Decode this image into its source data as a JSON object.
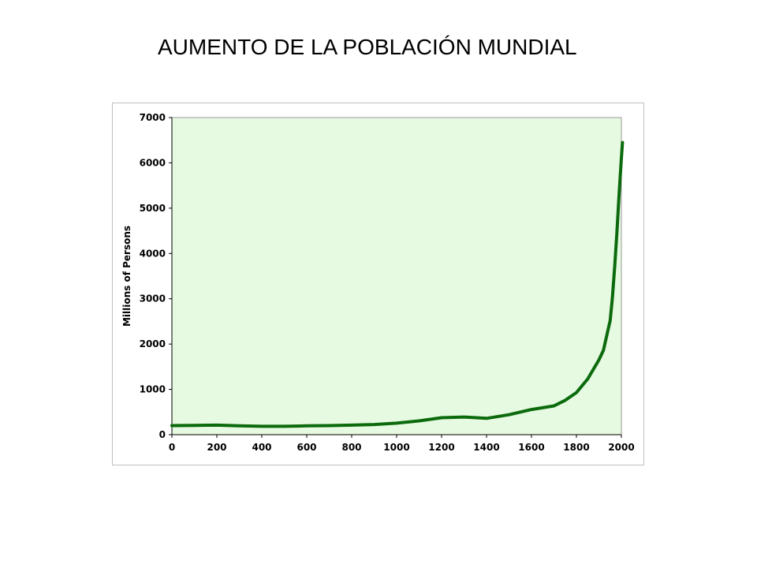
{
  "slide": {
    "title": "AUMENTO DE LA POBLACIÓN MUNDIAL"
  },
  "colors": {
    "plot_background": "#e6f9e1",
    "line": "#0b6a0b",
    "axis": "#000000",
    "frame_border": "#bfbfbf"
  },
  "chart_data": {
    "type": "line",
    "title": "",
    "xlabel": "",
    "ylabel": "Millions of Persons",
    "xlim": [
      0,
      2000
    ],
    "ylim": [
      0,
      7000
    ],
    "x_ticks": [
      0,
      200,
      400,
      600,
      800,
      1000,
      1200,
      1400,
      1600,
      1800,
      2000
    ],
    "y_ticks": [
      0,
      1000,
      2000,
      3000,
      4000,
      5000,
      6000,
      7000
    ],
    "grid": false,
    "legend": "none",
    "series": [
      {
        "x": [
          0,
          100,
          200,
          300,
          400,
          500,
          600,
          700,
          800,
          900,
          1000,
          1100,
          1200,
          1300,
          1400,
          1500,
          1600,
          1700,
          1750,
          1800,
          1850,
          1900,
          1920,
          1940,
          1950,
          1960,
          1970,
          1980,
          1990,
          2000,
          2005
        ],
        "y": [
          200,
          205,
          210,
          195,
          185,
          185,
          195,
          200,
          210,
          225,
          255,
          305,
          375,
          390,
          360,
          440,
          555,
          635,
          760,
          930,
          1230,
          1650,
          1860,
          2300,
          2520,
          3020,
          3700,
          4450,
          5300,
          6100,
          6450
        ]
      }
    ]
  }
}
